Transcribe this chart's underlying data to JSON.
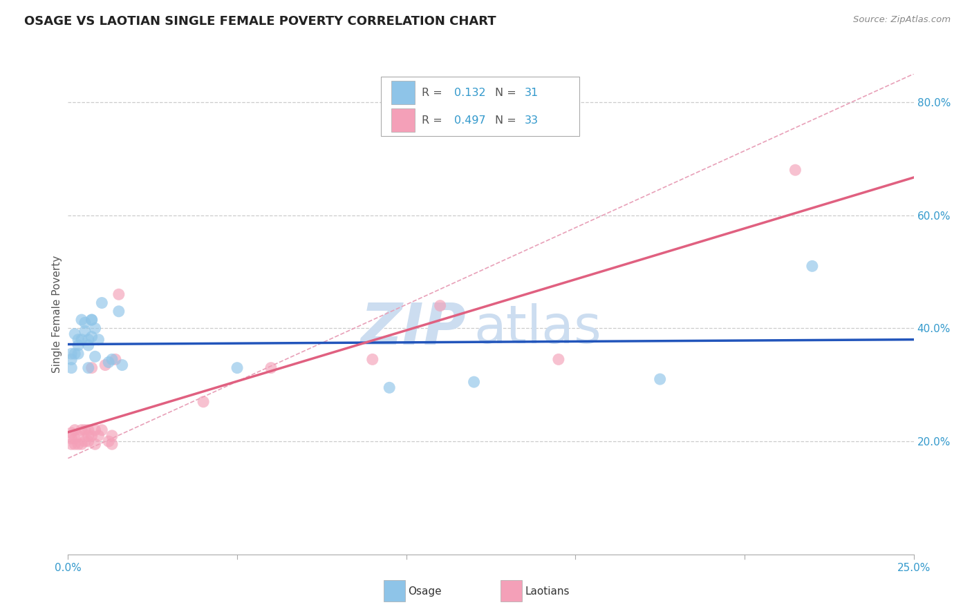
{
  "title": "OSAGE VS LAOTIAN SINGLE FEMALE POVERTY CORRELATION CHART",
  "source": "Source: ZipAtlas.com",
  "ylabel_label": "Single Female Poverty",
  "xlim": [
    0.0,
    0.25
  ],
  "ylim": [
    0.0,
    0.85
  ],
  "xtick_positions": [
    0.0,
    0.05,
    0.1,
    0.15,
    0.2,
    0.25
  ],
  "xtick_labels": [
    "0.0%",
    "",
    "",
    "",
    "",
    "25.0%"
  ],
  "yticks_right": [
    0.2,
    0.4,
    0.6,
    0.8
  ],
  "ytick_right_labels": [
    "20.0%",
    "40.0%",
    "60.0%",
    "80.0%"
  ],
  "osage_R": 0.132,
  "osage_N": 31,
  "laotian_R": 0.497,
  "laotian_N": 33,
  "osage_color": "#8ec4e8",
  "laotian_color": "#f4a0b8",
  "osage_line_color": "#2255bb",
  "laotian_line_color": "#e06080",
  "diagonal_color": "#c8c8c8",
  "background_color": "#ffffff",
  "watermark_zip": "ZIP",
  "watermark_atlas": "atlas",
  "watermark_color": "#ccddf0",
  "osage_x": [
    0.001,
    0.001,
    0.001,
    0.002,
    0.002,
    0.003,
    0.003,
    0.003,
    0.004,
    0.004,
    0.005,
    0.005,
    0.006,
    0.006,
    0.006,
    0.007,
    0.007,
    0.007,
    0.008,
    0.008,
    0.009,
    0.01,
    0.012,
    0.013,
    0.015,
    0.016,
    0.05,
    0.095,
    0.12,
    0.175,
    0.22
  ],
  "osage_y": [
    0.33,
    0.345,
    0.355,
    0.355,
    0.39,
    0.37,
    0.38,
    0.355,
    0.38,
    0.415,
    0.395,
    0.41,
    0.33,
    0.37,
    0.38,
    0.385,
    0.415,
    0.415,
    0.4,
    0.35,
    0.38,
    0.445,
    0.34,
    0.345,
    0.43,
    0.335,
    0.33,
    0.295,
    0.305,
    0.31,
    0.51
  ],
  "laotian_x": [
    0.001,
    0.001,
    0.001,
    0.002,
    0.002,
    0.002,
    0.003,
    0.003,
    0.004,
    0.004,
    0.005,
    0.005,
    0.006,
    0.006,
    0.006,
    0.007,
    0.007,
    0.008,
    0.008,
    0.009,
    0.01,
    0.011,
    0.012,
    0.013,
    0.013,
    0.014,
    0.015,
    0.04,
    0.06,
    0.09,
    0.11,
    0.145,
    0.215
  ],
  "laotian_y": [
    0.195,
    0.205,
    0.215,
    0.195,
    0.205,
    0.22,
    0.195,
    0.21,
    0.195,
    0.22,
    0.2,
    0.22,
    0.2,
    0.21,
    0.22,
    0.21,
    0.33,
    0.195,
    0.22,
    0.21,
    0.22,
    0.335,
    0.2,
    0.195,
    0.21,
    0.345,
    0.46,
    0.27,
    0.33,
    0.345,
    0.44,
    0.345,
    0.68
  ],
  "title_fontsize": 13,
  "axis_label_fontsize": 11,
  "tick_fontsize": 11
}
